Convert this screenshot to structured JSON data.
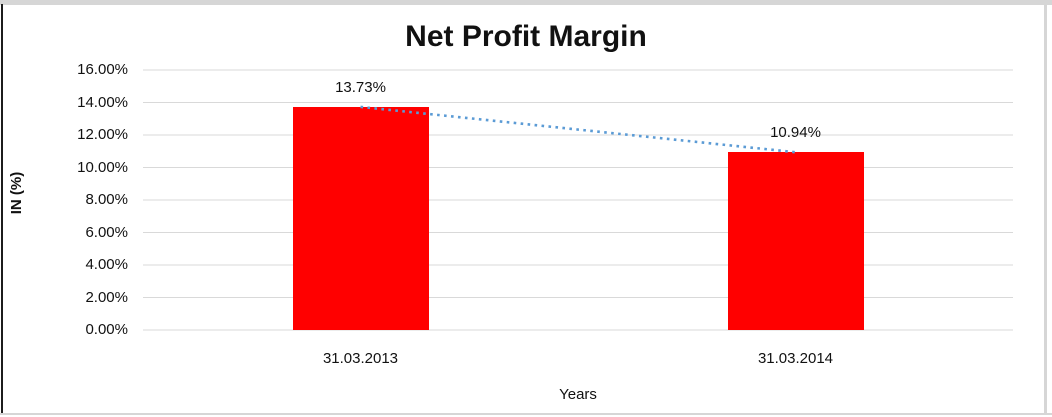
{
  "chart_data": {
    "type": "bar",
    "title": "Net Profit Margin",
    "categories": [
      "31.03.2013",
      "31.03.2014"
    ],
    "values": [
      13.73,
      10.94
    ],
    "value_labels": [
      "13.73%",
      "10.94%"
    ],
    "xlabel": "Years",
    "ylabel": "IN (%)",
    "ylim": [
      0,
      16
    ],
    "ytick_step": 2,
    "ytick_labels": [
      "0.00%",
      "2.00%",
      "4.00%",
      "6.00%",
      "8.00%",
      "10.00%",
      "12.00%",
      "14.00%",
      "16.00%"
    ],
    "grid": true,
    "legend": false,
    "bar_color": "#FF0000",
    "gridline_color": "#D9D9D9",
    "trendline": {
      "style": "dotted",
      "color": "#5B9BD5",
      "from_value": 13.73,
      "to_value": 10.94
    }
  }
}
